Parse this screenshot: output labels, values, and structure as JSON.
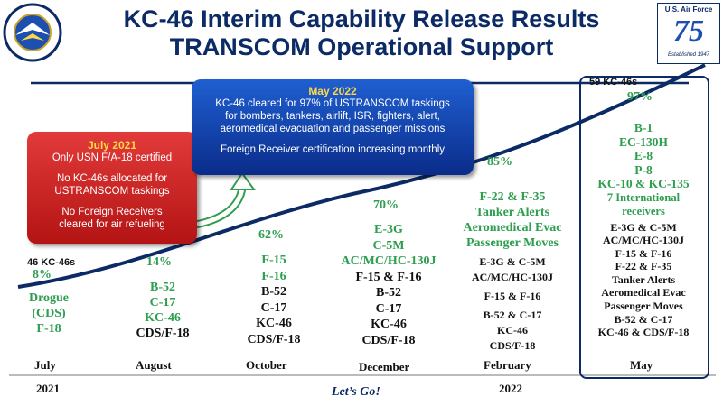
{
  "header": {
    "title_line1": "KC-46 Interim Capability Release Results",
    "title_line2": "TRANSCOM Operational Support",
    "left_logo_text": "AIR MOBILITY COMMAND",
    "right_logo_text": "U.S. Air Force",
    "right_logo_number": "75",
    "right_logo_sub": "Established 1947"
  },
  "callouts": {
    "july": {
      "title": "July 2021",
      "lines": [
        "Only USN F/A-18 certified",
        "",
        "No KC-46s allocated for",
        "USTRANSCOM taskings",
        "",
        "No Foreign Receivers",
        "cleared for air refueling"
      ]
    },
    "may": {
      "title": "May 2022",
      "lines": [
        "KC-46 cleared for 97% of USTRANSCOM taskings",
        "for bombers, tankers, airlift, ISR, fighters, alert,",
        "aeromedical evacuation and passenger missions",
        "",
        "Foreign Receiver certification increasing monthly"
      ]
    }
  },
  "timeline": {
    "start_count": "46 KC-46s",
    "end_count": "59 KC-46s",
    "percents": {
      "july": "8%",
      "august": "14%",
      "october": "62%",
      "december": "70%",
      "february": "85%",
      "may": "97%"
    },
    "months": [
      "July",
      "August",
      "October",
      "December",
      "February",
      "May"
    ],
    "years": [
      "2021",
      "2022"
    ],
    "slogan": "Let’s Go!"
  },
  "columns": {
    "july": {
      "green": [
        "Drogue",
        "(CDS)",
        "F-18"
      ],
      "black": []
    },
    "august": {
      "green": [
        "B-52",
        "C-17",
        "KC-46"
      ],
      "black": [
        "CDS/F-18"
      ]
    },
    "october": {
      "green": [
        "F-15",
        "F-16"
      ],
      "black": [
        "B-52",
        "C-17",
        "KC-46",
        "CDS/F-18"
      ]
    },
    "december": {
      "green": [
        "E-3G",
        "C-5M",
        "AC/MC/HC-130J"
      ],
      "black": [
        "F-15 & F-16",
        "B-52",
        "C-17",
        "KC-46",
        "CDS/F-18"
      ]
    },
    "february": {
      "green": [
        "F-22 & F-35",
        "Tanker Alerts",
        "Aeromedical Evac",
        "Passenger Moves"
      ],
      "black": [
        "E-3G & C-5M",
        "AC/MC/HC-130J",
        "F-15 & F-16",
        "B-52 & C-17",
        "KC-46",
        "CDS/F-18"
      ]
    },
    "may": {
      "green": [
        "B-1",
        "EC-130H",
        "E-8",
        "P-8",
        "KC-10 & KC-135",
        "7 International",
        "receivers"
      ],
      "black": [
        "E-3G & C-5M",
        "AC/MC/HC-130J",
        "F-15 & F-16",
        "F-22 & F-35",
        "Tanker Alerts",
        "Aeromedical Evac",
        "Passenger Moves",
        "B-52 & C-17",
        "KC-46 & CDS/F-18"
      ]
    }
  },
  "colors": {
    "navy": "#0b2a66",
    "green": "#2e9e4f",
    "red_box": "#c81e1e",
    "blue_box": "#1245b0",
    "yellow": "#ffd84a"
  }
}
